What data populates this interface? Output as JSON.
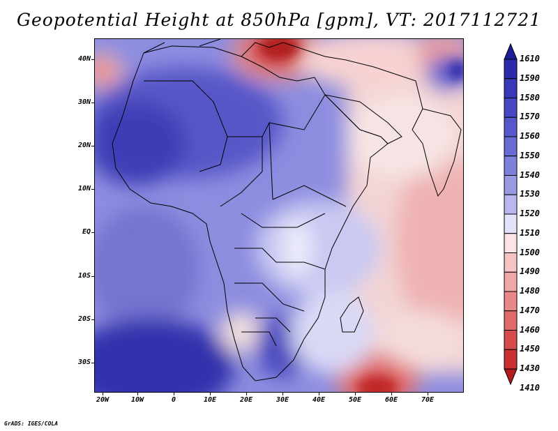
{
  "title": "Geopotential Height at 850hPa [gpm], VT: 2017112721",
  "footer": "GrADS: IGES/COLA",
  "lat_labels": [
    "40N",
    "30N",
    "20N",
    "10N",
    "EQ",
    "10S",
    "20S",
    "30S"
  ],
  "lon_labels": [
    "20W",
    "10W",
    "0",
    "10E",
    "20E",
    "30E",
    "40E",
    "50E",
    "60E",
    "70E"
  ],
  "colorbar": {
    "levels": [
      "1610",
      "1590",
      "1580",
      "1570",
      "1560",
      "1550",
      "1540",
      "1530",
      "1520",
      "1510",
      "1500",
      "1490",
      "1480",
      "1470",
      "1460",
      "1450",
      "1430",
      "1410"
    ],
    "colors": [
      "#1d1d9a",
      "#2a2aaa",
      "#3838b8",
      "#4747c4",
      "#5757cc",
      "#6a6ad4",
      "#7f7fdc",
      "#9a9ae4",
      "#b8b8ef",
      "#e2e2f8",
      "#fbe4e4",
      "#f6c4c4",
      "#f0a6a6",
      "#e98888",
      "#e06a6a",
      "#d64c4c",
      "#c83232",
      "#b01c1c"
    ]
  }
}
